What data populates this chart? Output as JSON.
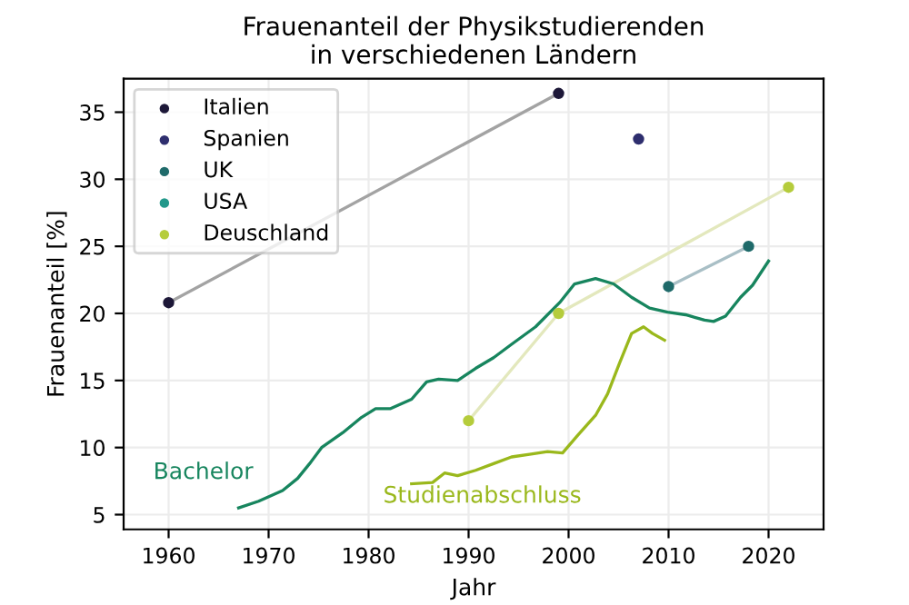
{
  "chart_data": {
    "type": "scatter",
    "title": "Frauenanteil der Physikstudierenden\nin verschiedenen Ländern",
    "xlabel": "Jahr",
    "ylabel": "Frauenanteil [%]",
    "xlim": [
      1955.5,
      2025.5
    ],
    "ylim": [
      3.9,
      37.5
    ],
    "xticks": [
      1960,
      1970,
      1980,
      1990,
      2000,
      2010,
      2020
    ],
    "yticks": [
      5,
      10,
      15,
      20,
      25,
      30,
      35
    ],
    "grid": true,
    "legend": "top left",
    "series": [
      {
        "type": "line",
        "marker": "none",
        "color": "#a3a3a3",
        "x": [
          1960,
          1999
        ],
        "values": [
          20.8,
          36.4
        ]
      },
      {
        "type": "line",
        "marker": "none",
        "color": "#a9bfc6",
        "x": [
          2010,
          2018
        ],
        "values": [
          22,
          25
        ]
      },
      {
        "type": "line",
        "marker": "none",
        "color": "#e3e8bd",
        "x": [
          1990,
          1999,
          2022
        ],
        "values": [
          12,
          20,
          29.4
        ]
      },
      {
        "type": "line",
        "marker": "none",
        "name": "Bachelor",
        "color": "#17855e",
        "x": [
          1967,
          1969,
          1971.4,
          1972.9,
          1974.1,
          1975.3,
          1977.4,
          1979.2,
          1980.7,
          1982.2,
          1984.3,
          1985.8,
          1987,
          1988.9,
          1990.7,
          1992.5,
          1994.3,
          1996.7,
          1999.1,
          2000.6,
          2002.7,
          2004.5,
          2006.3,
          2008.1,
          2009.9,
          2011.7,
          2013.6,
          2014.5,
          2015.7,
          2017.2,
          2018.4,
          2020
        ],
        "values": [
          5.5,
          6.0,
          6.8,
          7.7,
          8.8,
          10.0,
          11.1,
          12.2,
          12.9,
          12.9,
          13.6,
          14.9,
          15.1,
          15.0,
          15.9,
          16.7,
          17.7,
          19.0,
          20.8,
          22.2,
          22.6,
          22.2,
          21.2,
          20.4,
          20.1,
          19.9,
          19.5,
          19.4,
          19.8,
          21.2,
          22.1,
          23.9
        ]
      },
      {
        "type": "line",
        "marker": "none",
        "name": "Studienabschluss",
        "color": "#9ab81c",
        "x": [
          1984.3,
          1986.4,
          1987.6,
          1988.9,
          1990.7,
          1992.5,
          1994.3,
          1996.1,
          1997.9,
          1999.4,
          2000.9,
          2002.7,
          2003.9,
          2005.1,
          2006.3,
          2007.5,
          2008.4,
          2009.6
        ],
        "values": [
          7.3,
          7.4,
          8.1,
          7.9,
          8.3,
          8.8,
          9.3,
          9.5,
          9.7,
          9.6,
          10.9,
          12.4,
          14.0,
          16.3,
          18.5,
          19.0,
          18.5,
          18.0
        ]
      },
      {
        "name": "Italien",
        "marker": "circle",
        "color": "#1d1838",
        "x": [
          1960,
          1999
        ],
        "values": [
          20.8,
          36.4
        ]
      },
      {
        "name": "Spanien",
        "marker": "circle",
        "color": "#2e2e6e",
        "x": [
          2007
        ],
        "values": [
          33
        ]
      },
      {
        "name": "UK",
        "marker": "circle",
        "color": "#1f6a6a",
        "x": [
          2010,
          2018
        ],
        "values": [
          22,
          25
        ]
      },
      {
        "name": "USA",
        "marker": "circle",
        "color": "#22988a"
      },
      {
        "name": "Deuschland",
        "marker": "circle",
        "color": "#b5cc3c",
        "x": [
          1990,
          1999,
          2022
        ],
        "values": [
          12,
          20,
          29.4
        ]
      }
    ]
  }
}
